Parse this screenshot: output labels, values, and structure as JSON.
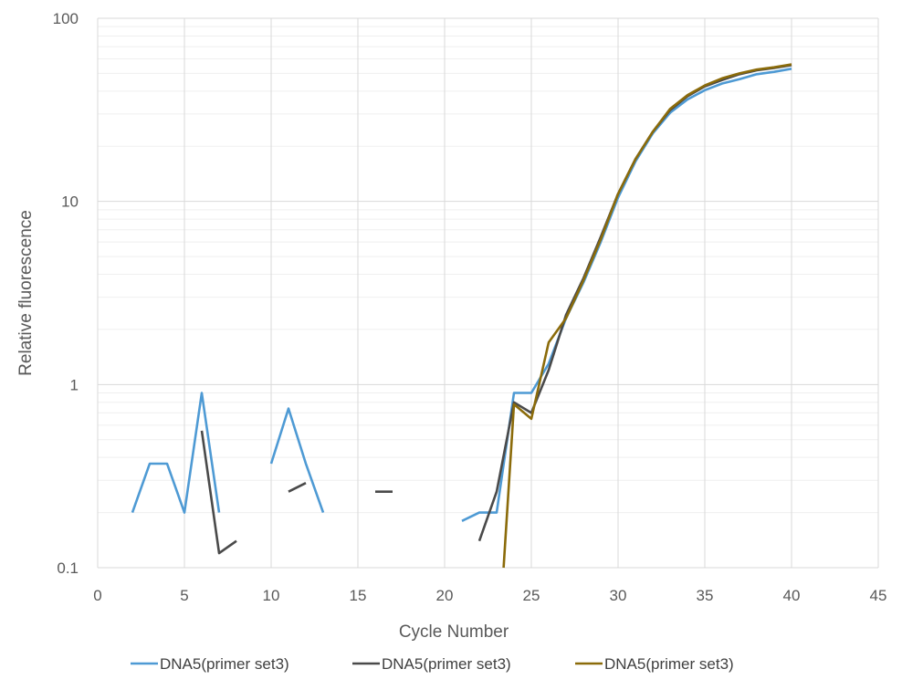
{
  "chart_data": {
    "type": "line",
    "xlabel": "Cycle Number",
    "ylabel": "Relative fluorescence",
    "xlim": [
      0,
      45
    ],
    "ylim": [
      0.1,
      100
    ],
    "yscale": "log",
    "xticks": [
      "0",
      "5",
      "10",
      "15",
      "20",
      "25",
      "30",
      "35",
      "40",
      "45"
    ],
    "yticks": [
      "0.1",
      "1",
      "10",
      "100"
    ],
    "grid": true,
    "legend_position": "bottom",
    "series": [
      {
        "name": "DNA5(primer set3)",
        "color": "#4e9ad4",
        "segments": [
          [
            [
              2,
              0.2
            ],
            [
              3,
              0.37
            ],
            [
              4,
              0.37
            ],
            [
              5,
              0.2
            ],
            [
              6,
              0.9
            ],
            [
              7,
              0.2
            ]
          ],
          [
            [
              10,
              0.37
            ],
            [
              11,
              0.74
            ],
            [
              12,
              0.37
            ],
            [
              13,
              0.2
            ]
          ],
          [
            [
              21,
              0.18
            ],
            [
              22,
              0.2
            ],
            [
              23,
              0.2
            ],
            [
              24,
              0.9
            ],
            [
              25,
              0.9
            ],
            [
              26,
              1.3
            ],
            [
              27,
              2.3
            ],
            [
              28,
              3.6
            ],
            [
              29,
              6.0
            ],
            [
              30,
              10.5
            ],
            [
              31,
              16.5
            ],
            [
              32,
              23.5
            ],
            [
              33,
              30.5
            ],
            [
              34,
              36.0
            ],
            [
              35,
              40.5
            ],
            [
              36,
              44.0
            ],
            [
              37,
              46.5
            ],
            [
              38,
              49.5
            ],
            [
              39,
              51.0
            ],
            [
              40,
              53.0
            ]
          ]
        ]
      },
      {
        "name": "DNA5(primer set3)",
        "color": "#4a4a4a",
        "segments": [
          [
            [
              6,
              0.56
            ],
            [
              7,
              0.12
            ],
            [
              8,
              0.14
            ]
          ],
          [
            [
              11,
              0.26
            ],
            [
              12,
              0.29
            ]
          ],
          [
            [
              16,
              0.26
            ],
            [
              17,
              0.26
            ]
          ],
          [
            [
              22,
              0.14
            ],
            [
              23,
              0.26
            ],
            [
              24,
              0.8
            ],
            [
              25,
              0.7
            ],
            [
              26,
              1.2
            ],
            [
              27,
              2.4
            ],
            [
              28,
              3.8
            ],
            [
              29,
              6.4
            ],
            [
              30,
              11.0
            ],
            [
              31,
              17.0
            ],
            [
              32,
              24.0
            ],
            [
              33,
              31.5
            ],
            [
              34,
              37.5
            ],
            [
              35,
              42.5
            ],
            [
              36,
              46.0
            ],
            [
              37,
              49.5
            ],
            [
              38,
              52.0
            ],
            [
              39,
              53.5
            ],
            [
              40,
              55.5
            ]
          ]
        ]
      },
      {
        "name": "DNA5(primer set3)",
        "color": "#8b6b0a",
        "segments": [
          [
            [
              23.4,
              0.1
            ],
            [
              24,
              0.78
            ],
            [
              25,
              0.65
            ],
            [
              26,
              1.7
            ],
            [
              27,
              2.3
            ],
            [
              28,
              3.7
            ],
            [
              29,
              6.2
            ],
            [
              30,
              11.0
            ],
            [
              31,
              17.0
            ],
            [
              32,
              24.0
            ],
            [
              33,
              32.0
            ],
            [
              34,
              38.0
            ],
            [
              35,
              43.0
            ],
            [
              36,
              47.0
            ],
            [
              37,
              50.0
            ],
            [
              38,
              52.5
            ],
            [
              39,
              54.0
            ],
            [
              40,
              56.0
            ]
          ]
        ]
      }
    ]
  }
}
